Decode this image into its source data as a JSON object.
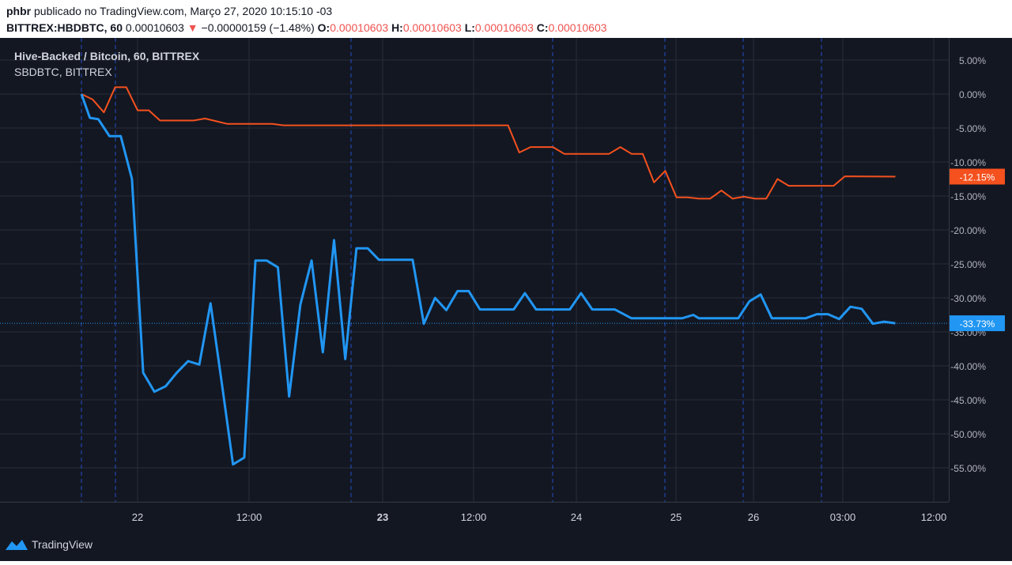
{
  "header": {
    "user": "phbr",
    "published_text": "publicado no TradingView.com, Março 27, 2020 10:15:10 -03",
    "symbol": "BITTREX:HBDBTC, 60",
    "last": "0.00010603",
    "change": "−0.00000159 (−1.48%)",
    "o_label": "O:",
    "o_value": "0.00010603",
    "h_label": "H:",
    "h_value": "0.00010603",
    "l_label": "L:",
    "l_value": "0.00010603",
    "c_label": "C:",
    "c_value": "0.00010603"
  },
  "legend": {
    "main": "Hive-Backed / Bitcoin, 60, BITTREX",
    "compare": "SBDBTC, BITTREX"
  },
  "footer": {
    "brand": "TradingView"
  },
  "colors": {
    "blue": "#2196f3",
    "red": "#f4511e",
    "background": "#131722",
    "grid": "#2a2e39"
  },
  "chart_data": {
    "type": "line",
    "y_unit": "%",
    "ylim": [
      -60,
      7
    ],
    "y_ticks": [
      "5.00%",
      "0.00%",
      "-5.00%",
      "-10.00%",
      "-15.00%",
      "-20.00%",
      "-25.00%",
      "-30.00%",
      "-35.00%",
      "-40.00%",
      "-45.00%",
      "-50.00%",
      "-55.00%"
    ],
    "x_ticks": [
      "22",
      "12:00",
      "23",
      "12:00",
      "24",
      "25",
      "26",
      "03:00",
      "12:00"
    ],
    "x_tick_bold": "23",
    "series": [
      {
        "name": "Hive-Backed / Bitcoin, 60, BITTREX",
        "color": "blue",
        "last_label": "-33.73%",
        "points": [
          [
            0,
            0
          ],
          [
            0.75,
            -3.5
          ],
          [
            1.5,
            -3.7
          ],
          [
            2.5,
            -6.2
          ],
          [
            3.5,
            -6.2
          ],
          [
            4.5,
            -12.5
          ],
          [
            5.5,
            -41
          ],
          [
            6.5,
            -43.8
          ],
          [
            7.5,
            -43
          ],
          [
            8.5,
            -41
          ],
          [
            9.5,
            -39.3
          ],
          [
            10.5,
            -39.8
          ],
          [
            11.5,
            -30.8
          ],
          [
            12.5,
            -42.5
          ],
          [
            13.5,
            -54.5
          ],
          [
            14.5,
            -53.5
          ],
          [
            15.5,
            -24.5
          ],
          [
            16.5,
            -24.5
          ],
          [
            17.5,
            -25.5
          ],
          [
            18.5,
            -44.5
          ],
          [
            19.5,
            -31
          ],
          [
            20.5,
            -24.5
          ],
          [
            21.5,
            -38
          ],
          [
            22.5,
            -21.5
          ],
          [
            23.5,
            -39
          ],
          [
            24.5,
            -22.7
          ],
          [
            25.5,
            -22.7
          ],
          [
            26.5,
            -24.4
          ],
          [
            29.5,
            -24.4
          ],
          [
            30.5,
            -33.8
          ],
          [
            31.5,
            -30
          ],
          [
            32.5,
            -31.8
          ],
          [
            33.5,
            -29
          ],
          [
            34.5,
            -29
          ],
          [
            35.5,
            -31.7
          ],
          [
            38.5,
            -31.7
          ],
          [
            39.5,
            -29.3
          ],
          [
            40.5,
            -31.7
          ],
          [
            43.5,
            -31.7
          ],
          [
            44.5,
            -29.3
          ],
          [
            45.5,
            -31.7
          ],
          [
            47.5,
            -31.7
          ],
          [
            49,
            -33
          ],
          [
            53.5,
            -33
          ],
          [
            54.5,
            -32.5
          ],
          [
            55,
            -33
          ],
          [
            58.5,
            -33
          ],
          [
            59.5,
            -30.5
          ],
          [
            60.5,
            -29.5
          ],
          [
            61.5,
            -33
          ],
          [
            64.5,
            -33
          ],
          [
            65.5,
            -32.4
          ],
          [
            66.5,
            -32.4
          ],
          [
            67.5,
            -33.1
          ],
          [
            68.5,
            -31.3
          ],
          [
            69.5,
            -31.6
          ],
          [
            70.5,
            -33.8
          ],
          [
            71.5,
            -33.5
          ],
          [
            72.5,
            -33.73
          ]
        ]
      },
      {
        "name": "SBDBTC, BITTREX",
        "color": "red",
        "last_label": "-12.15%",
        "points": [
          [
            0,
            0
          ],
          [
            1,
            -0.8
          ],
          [
            2,
            -2.7
          ],
          [
            3,
            1
          ],
          [
            4,
            1
          ],
          [
            5,
            -2.4
          ],
          [
            6,
            -2.4
          ],
          [
            7,
            -3.9
          ],
          [
            10,
            -3.9
          ],
          [
            11,
            -3.6
          ],
          [
            12,
            -4
          ],
          [
            13,
            -4.4
          ],
          [
            17,
            -4.4
          ],
          [
            18,
            -4.6
          ],
          [
            38,
            -4.6
          ],
          [
            39,
            -8.6
          ],
          [
            40,
            -7.8
          ],
          [
            42,
            -7.8
          ],
          [
            43,
            -8.8
          ],
          [
            47,
            -8.8
          ],
          [
            48,
            -7.8
          ],
          [
            49,
            -8.8
          ],
          [
            50,
            -8.8
          ],
          [
            51,
            -13
          ],
          [
            52,
            -11.3
          ],
          [
            53,
            -15.2
          ],
          [
            54,
            -15.2
          ],
          [
            55,
            -15.4
          ],
          [
            56,
            -15.4
          ],
          [
            57,
            -14.2
          ],
          [
            58,
            -15.4
          ],
          [
            59,
            -15.1
          ],
          [
            60,
            -15.4
          ],
          [
            61,
            -15.4
          ],
          [
            62,
            -12.5
          ],
          [
            63,
            -13.5
          ],
          [
            67,
            -13.5
          ],
          [
            68,
            -12.1
          ],
          [
            72.5,
            -12.15
          ]
        ]
      }
    ]
  }
}
